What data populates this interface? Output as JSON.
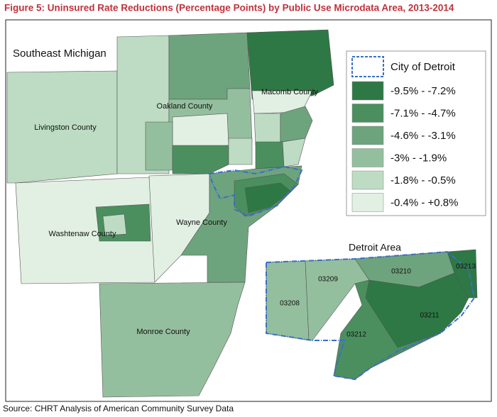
{
  "title": "Figure 5: Uninsured Rate Reductions (Percentage Points) by Public Use Microdata Area, 2013-2014",
  "map": {
    "region_label": "Southeast Michigan",
    "counties": [
      "Livingston County",
      "Oakland County",
      "Macomb County",
      "Washtenaw County",
      "Wayne County",
      "Monroe County"
    ],
    "inset": {
      "title": "Detroit Area",
      "areas": [
        "03208",
        "03209",
        "03210",
        "03211",
        "03212",
        "03213"
      ]
    }
  },
  "legend": {
    "outline": {
      "label": "City of Detroit",
      "color": "#3a6fc4"
    },
    "items": [
      {
        "label": "-9.5% - -7.2%",
        "color": "#2e7845"
      },
      {
        "label": "-7.1% - -4.7%",
        "color": "#4b8f5f"
      },
      {
        "label": "-4.6% - -3.1%",
        "color": "#6ea47d"
      },
      {
        "label": "-3% - -1.9%",
        "color": "#94bf9e"
      },
      {
        "label": "-1.8% - -0.5%",
        "color": "#bddcc3"
      },
      {
        "label": "-0.4% - +0.8%",
        "color": "#e2f0e4"
      }
    ]
  },
  "source": "Source: CHRT Analysis of American Community Survey Data"
}
